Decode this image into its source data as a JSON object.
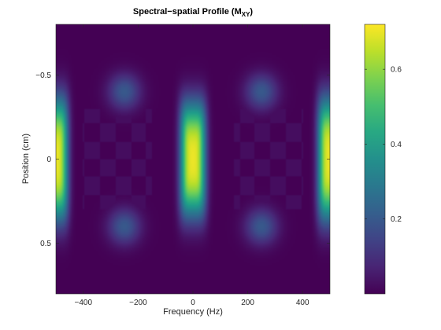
{
  "chart_data": {
    "type": "heatmap",
    "title": {
      "main": "Spectral−spatial Profile (M",
      "subscript": "XY",
      "close": ")"
    },
    "xlabel": "Frequency (Hz)",
    "ylabel": "Position (cm)",
    "xlim": [
      -500,
      500
    ],
    "ylim": [
      -0.8,
      0.8
    ],
    "y_reversed": true,
    "xticks": [
      {
        "value": -400,
        "label": "−400"
      },
      {
        "value": -200,
        "label": "−200"
      },
      {
        "value": 0,
        "label": "0"
      },
      {
        "value": 200,
        "label": "200"
      },
      {
        "value": 400,
        "label": "400"
      }
    ],
    "yticks": [
      {
        "value": -0.5,
        "label": "−0.5"
      },
      {
        "value": 0,
        "label": "0"
      },
      {
        "value": 0.5,
        "label": "0.5"
      }
    ],
    "colormap": "viridis",
    "clim": [
      0,
      0.72
    ],
    "colorbar_ticks": [
      {
        "value": 0.2,
        "label": "0.2"
      },
      {
        "value": 0.4,
        "label": "0.4"
      },
      {
        "value": 0.6,
        "label": "0.6"
      }
    ],
    "bands": [
      {
        "center_hz": 0,
        "peak_value": 0.7,
        "half_width_hz": 38,
        "half_height_cm": 0.28
      },
      {
        "center_hz": -500,
        "peak_value": 0.7,
        "half_width_hz": 36,
        "half_height_cm": 0.3
      },
      {
        "center_hz": 500,
        "peak_value": 0.7,
        "half_width_hz": 36,
        "half_height_cm": 0.3
      }
    ],
    "side_lobes": [
      {
        "center_hz": -250,
        "center_cm": -0.4,
        "peak_value": 0.2
      },
      {
        "center_hz": -250,
        "center_cm": 0.4,
        "peak_value": 0.2
      },
      {
        "center_hz": 250,
        "center_cm": -0.4,
        "peak_value": 0.2
      },
      {
        "center_hz": 250,
        "center_cm": 0.4,
        "peak_value": 0.2
      }
    ]
  }
}
